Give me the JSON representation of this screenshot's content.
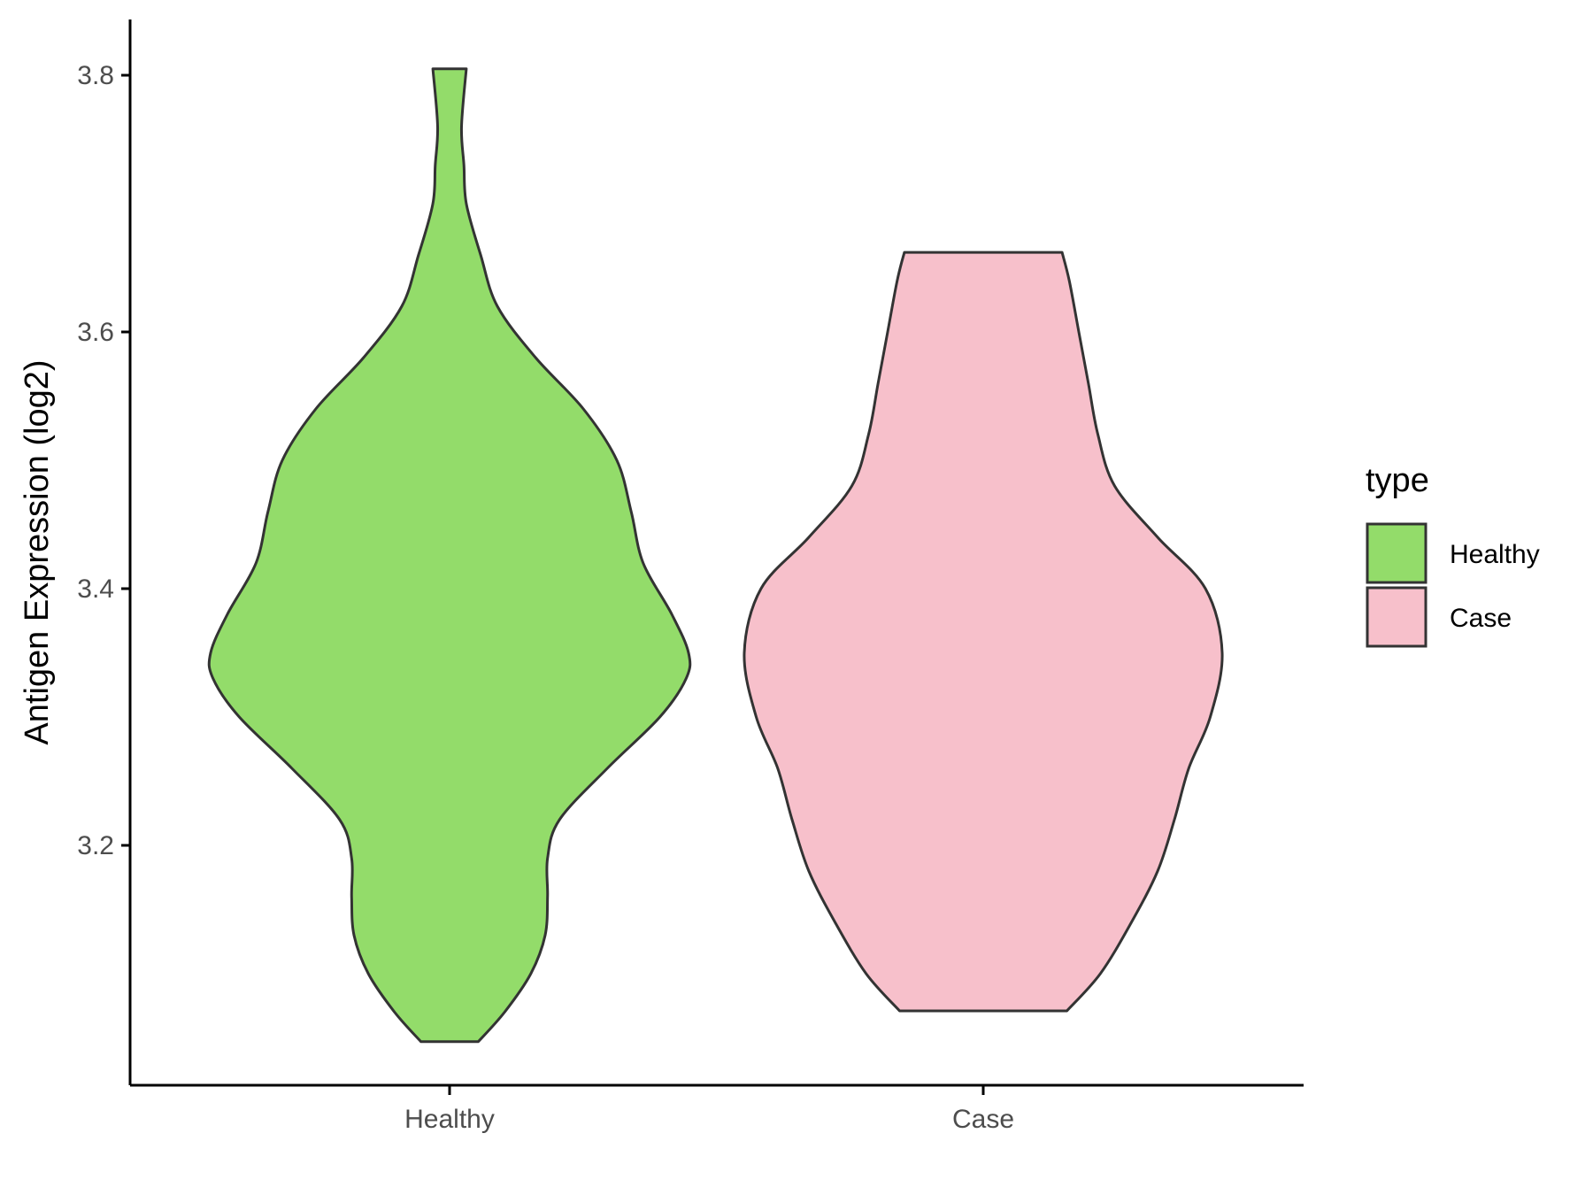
{
  "chart_data": {
    "type": "violin",
    "title": "",
    "xlabel": "",
    "ylabel": "Antigen Expression (log2)",
    "categories": [
      "Healthy",
      "Case"
    ],
    "ylim": [
      3.01,
      3.84
    ],
    "yticks": [
      3.2,
      3.4,
      3.6,
      3.8
    ],
    "ytick_labels": [
      "3.2",
      "3.4",
      "3.6",
      "3.8"
    ],
    "grid": false,
    "legend": {
      "title": "type",
      "position": "right",
      "entries": [
        {
          "label": "Healthy",
          "color": "#93dc6a"
        },
        {
          "label": "Case",
          "color": "#f7c0cb"
        }
      ]
    },
    "series": [
      {
        "name": "Healthy",
        "color": "#93dc6a",
        "min": 3.047,
        "max": 3.805,
        "density": [
          [
            3.047,
            0.12
          ],
          [
            3.07,
            0.23
          ],
          [
            3.1,
            0.34
          ],
          [
            3.13,
            0.4
          ],
          [
            3.16,
            0.41
          ],
          [
            3.19,
            0.41
          ],
          [
            3.22,
            0.46
          ],
          [
            3.26,
            0.66
          ],
          [
            3.3,
            0.88
          ],
          [
            3.33,
            0.99
          ],
          [
            3.35,
            1.0
          ],
          [
            3.38,
            0.93
          ],
          [
            3.42,
            0.81
          ],
          [
            3.46,
            0.76
          ],
          [
            3.5,
            0.7
          ],
          [
            3.54,
            0.56
          ],
          [
            3.58,
            0.36
          ],
          [
            3.62,
            0.2
          ],
          [
            3.66,
            0.13
          ],
          [
            3.7,
            0.07
          ],
          [
            3.73,
            0.06
          ],
          [
            3.76,
            0.05
          ],
          [
            3.805,
            0.07
          ]
        ]
      },
      {
        "name": "Case",
        "color": "#f7c0cb",
        "min": 3.071,
        "max": 3.662,
        "density": [
          [
            3.071,
            0.35
          ],
          [
            3.1,
            0.49
          ],
          [
            3.14,
            0.62
          ],
          [
            3.18,
            0.73
          ],
          [
            3.22,
            0.8
          ],
          [
            3.26,
            0.86
          ],
          [
            3.3,
            0.95
          ],
          [
            3.35,
            1.0
          ],
          [
            3.4,
            0.93
          ],
          [
            3.44,
            0.73
          ],
          [
            3.48,
            0.55
          ],
          [
            3.52,
            0.48
          ],
          [
            3.56,
            0.44
          ],
          [
            3.6,
            0.4
          ],
          [
            3.64,
            0.36
          ],
          [
            3.662,
            0.33
          ]
        ]
      }
    ]
  }
}
